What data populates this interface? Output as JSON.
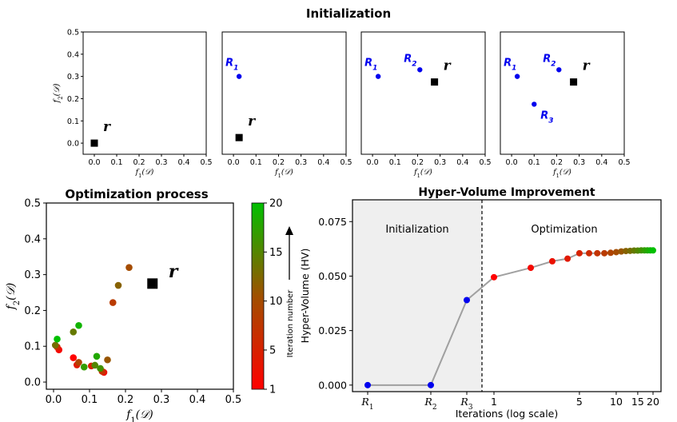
{
  "figure": {
    "title": "Initialization"
  },
  "chart_data": [
    {
      "type": "scatter",
      "panel": "init-1",
      "xlabel": "f₁(𝒟)",
      "ylabel": "f₂(𝒟)",
      "xlim": [
        -0.05,
        0.5
      ],
      "ylim": [
        -0.05,
        0.5
      ],
      "xticks": [
        "0.0",
        "0.1",
        "0.2",
        "0.3",
        "0.4",
        "0.5"
      ],
      "yticks": [
        "0.0",
        "0.1",
        "0.2",
        "0.3",
        "0.4",
        "0.5"
      ],
      "points": [],
      "reference": {
        "label": "r",
        "x": 0.0,
        "y": 0.0
      }
    },
    {
      "type": "scatter",
      "panel": "init-2",
      "xlabel": "f₁(𝒟)",
      "xlim": [
        -0.05,
        0.5
      ],
      "ylim": [
        -0.05,
        0.5
      ],
      "xticks": [
        "0.0",
        "0.1",
        "0.2",
        "0.3",
        "0.4",
        "0.5"
      ],
      "points": [
        {
          "label": "R",
          "sub": "1",
          "x": 0.025,
          "y": 0.3
        }
      ],
      "reference": {
        "label": "r",
        "x": 0.025,
        "y": 0.025
      }
    },
    {
      "type": "scatter",
      "panel": "init-3",
      "xlabel": "f₁(𝒟)",
      "xlim": [
        -0.05,
        0.5
      ],
      "ylim": [
        -0.05,
        0.5
      ],
      "xticks": [
        "0.0",
        "0.1",
        "0.2",
        "0.3",
        "0.4",
        "0.5"
      ],
      "points": [
        {
          "label": "R",
          "sub": "1",
          "x": 0.025,
          "y": 0.3
        },
        {
          "label": "R",
          "sub": "2",
          "x": 0.21,
          "y": 0.33
        }
      ],
      "reference": {
        "label": "r",
        "x": 0.275,
        "y": 0.275
      }
    },
    {
      "type": "scatter",
      "panel": "init-4",
      "xlabel": "f₁(𝒟)",
      "xlim": [
        -0.05,
        0.5
      ],
      "ylim": [
        -0.05,
        0.5
      ],
      "xticks": [
        "0.0",
        "0.1",
        "0.2",
        "0.3",
        "0.4",
        "0.5"
      ],
      "points": [
        {
          "label": "R",
          "sub": "1",
          "x": 0.025,
          "y": 0.3
        },
        {
          "label": "R",
          "sub": "2",
          "x": 0.21,
          "y": 0.33
        },
        {
          "label": "R",
          "sub": "3",
          "x": 0.1,
          "y": 0.175
        }
      ],
      "reference": {
        "label": "r",
        "x": 0.275,
        "y": 0.275
      }
    },
    {
      "type": "scatter",
      "panel": "optimization-process",
      "title": "Optimization process",
      "xlabel": "f₁(𝒟)",
      "ylabel": "f₂(𝒟)",
      "xlim": [
        -0.02,
        0.5
      ],
      "ylim": [
        -0.02,
        0.5
      ],
      "xticks": [
        "0.0",
        "0.1",
        "0.2",
        "0.3",
        "0.4",
        "0.5"
      ],
      "yticks": [
        "0.0",
        "0.1",
        "0.2",
        "0.3",
        "0.4",
        "0.5"
      ],
      "reference": {
        "label": "r",
        "x": 0.275,
        "y": 0.275
      },
      "colorbar": {
        "label": "Iteration number",
        "min": 1,
        "max": 20,
        "ticks": [
          "1",
          "5",
          "10",
          "15",
          "20"
        ]
      },
      "points": [
        {
          "x": 0.055,
          "y": 0.068,
          "iter": 1
        },
        {
          "x": 0.015,
          "y": 0.09,
          "iter": 2
        },
        {
          "x": 0.14,
          "y": 0.027,
          "iter": 3
        },
        {
          "x": 0.065,
          "y": 0.048,
          "iter": 4
        },
        {
          "x": 0.105,
          "y": 0.045,
          "iter": 5
        },
        {
          "x": 0.01,
          "y": 0.098,
          "iter": 6
        },
        {
          "x": 0.135,
          "y": 0.03,
          "iter": 7
        },
        {
          "x": 0.165,
          "y": 0.222,
          "iter": 8
        },
        {
          "x": 0.07,
          "y": 0.055,
          "iter": 9
        },
        {
          "x": 0.21,
          "y": 0.32,
          "iter": 10
        },
        {
          "x": 0.15,
          "y": 0.062,
          "iter": 11
        },
        {
          "x": 0.18,
          "y": 0.27,
          "iter": 12
        },
        {
          "x": 0.005,
          "y": 0.103,
          "iter": 13
        },
        {
          "x": 0.055,
          "y": 0.14,
          "iter": 14
        },
        {
          "x": 0.115,
          "y": 0.047,
          "iter": 15
        },
        {
          "x": 0.13,
          "y": 0.038,
          "iter": 16
        },
        {
          "x": 0.085,
          "y": 0.042,
          "iter": 17
        },
        {
          "x": 0.12,
          "y": 0.072,
          "iter": 18
        },
        {
          "x": 0.07,
          "y": 0.158,
          "iter": 19
        },
        {
          "x": 0.01,
          "y": 0.12,
          "iter": 20
        }
      ]
    },
    {
      "type": "line",
      "panel": "hyper-volume-improvement",
      "title": "Hyper-Volume Improvement",
      "xlabel": "Iterations (log scale)",
      "ylabel": "Hyper-Volume (HV)",
      "ylim": [
        -0.003,
        0.085
      ],
      "yticks": [
        "0.000",
        "0.025",
        "0.050",
        "0.075"
      ],
      "xticks": [
        "R1",
        "R2",
        "R3",
        "1",
        "5",
        "10",
        "15",
        "20"
      ],
      "regions": [
        "Initialization",
        "Optimization"
      ],
      "initialization": [
        {
          "label": "R1",
          "hv": 0.0
        },
        {
          "label": "R2",
          "hv": 0.0
        },
        {
          "label": "R3",
          "hv": 0.039
        }
      ],
      "optimization": {
        "iterations": [
          1,
          2,
          3,
          4,
          5,
          6,
          7,
          8,
          9,
          10,
          11,
          12,
          13,
          14,
          15,
          16,
          17,
          18,
          19,
          20
        ],
        "hv": [
          0.0495,
          0.0538,
          0.0568,
          0.058,
          0.0605,
          0.0605,
          0.0605,
          0.0605,
          0.0607,
          0.061,
          0.0613,
          0.0615,
          0.0616,
          0.0617,
          0.0617,
          0.0618,
          0.0618,
          0.0618,
          0.0618,
          0.0618
        ]
      }
    }
  ]
}
